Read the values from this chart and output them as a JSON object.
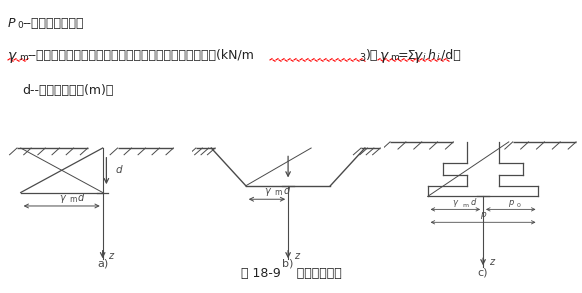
{
  "title": "图 18-9    基底附加压力",
  "background": "#ffffff",
  "line_color": "#4a4a4a",
  "text_color": "#222222",
  "sub_labels": [
    "a)",
    "b)",
    "c)"
  ]
}
